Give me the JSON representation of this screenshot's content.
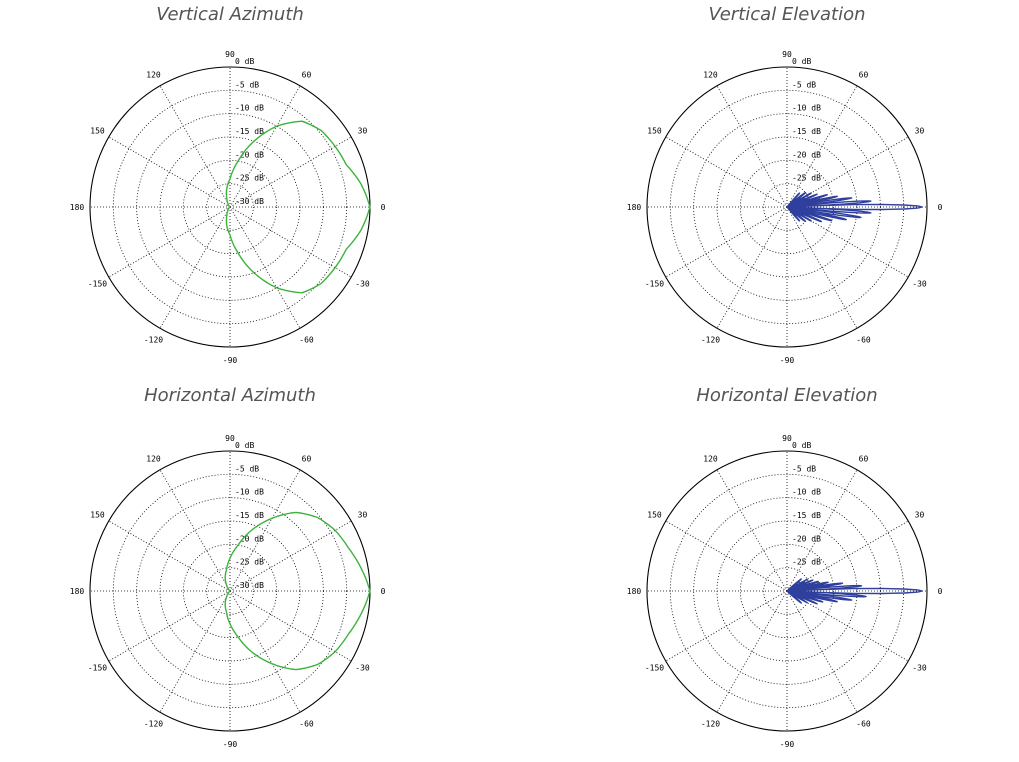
{
  "chart_data": [
    {
      "type": "polar",
      "title": "Vertical Azimuth",
      "angle_ticks": [
        "0",
        "30",
        "60",
        "90",
        "120",
        "150",
        "180",
        "-150",
        "-120",
        "-90",
        "-60",
        "-30"
      ],
      "ring_labels": [
        "0 dB",
        "-5 dB",
        "-10 dB",
        "-15 dB",
        "-20 dB",
        "-25 dB",
        "-30 dB"
      ],
      "rlim_db": [
        -30,
        0
      ],
      "grid": true,
      "series": [
        {
          "color": "#3cb33c",
          "angles_deg": [
            0,
            10,
            20,
            30,
            40,
            50,
            60,
            70,
            80,
            90,
            100,
            110,
            120,
            130,
            140,
            150,
            160,
            170,
            180,
            190,
            200,
            210,
            220,
            230,
            240,
            250,
            260,
            270,
            280,
            290,
            300,
            310,
            320,
            330,
            340,
            350
          ],
          "gain_db": [
            0,
            -1.5,
            -3.5,
            -4,
            -4.5,
            -6,
            -10,
            -15,
            -20,
            -24,
            -26,
            -28,
            -29,
            -29.5,
            -30,
            -30,
            -30,
            -30,
            -30,
            -30,
            -30,
            -30,
            -30,
            -29.5,
            -29,
            -28,
            -26,
            -24,
            -20,
            -15,
            -10,
            -6,
            -4.5,
            -4,
            -3.5,
            -1.5
          ]
        }
      ]
    },
    {
      "type": "polar",
      "title": "Vertical Elevation",
      "angle_ticks": [
        "0",
        "30",
        "60",
        "90",
        "120",
        "150",
        "180",
        "-150",
        "-120",
        "-90",
        "-60",
        "-30"
      ],
      "ring_labels": [
        "0 dB",
        "-5 dB",
        "-10 dB",
        "-15 dB",
        "-20 dB",
        "-25 dB",
        "-30 dB"
      ],
      "rlim_db": [
        -30,
        0
      ],
      "grid": true,
      "series": [
        {
          "color": "#2e3f9e",
          "lobes": [
            {
              "angle_deg": 0,
              "gain_db": -1,
              "width_deg": 3
            },
            {
              "angle_deg": 4,
              "gain_db": -12,
              "width_deg": 2
            },
            {
              "angle_deg": -4,
              "gain_db": -12,
              "width_deg": 2
            },
            {
              "angle_deg": 8,
              "gain_db": -16,
              "width_deg": 2
            },
            {
              "angle_deg": -8,
              "gain_db": -14,
              "width_deg": 2
            },
            {
              "angle_deg": 12,
              "gain_db": -19,
              "width_deg": 2
            },
            {
              "angle_deg": -12,
              "gain_db": -17,
              "width_deg": 2
            },
            {
              "angle_deg": 17,
              "gain_db": -21,
              "width_deg": 2
            },
            {
              "angle_deg": -17,
              "gain_db": -20,
              "width_deg": 2
            },
            {
              "angle_deg": 23,
              "gain_db": -23,
              "width_deg": 2
            },
            {
              "angle_deg": -23,
              "gain_db": -22,
              "width_deg": 2
            },
            {
              "angle_deg": 30,
              "gain_db": -24,
              "width_deg": 2
            },
            {
              "angle_deg": -30,
              "gain_db": -24,
              "width_deg": 2
            },
            {
              "angle_deg": 38,
              "gain_db": -25,
              "width_deg": 3
            },
            {
              "angle_deg": -38,
              "gain_db": -25,
              "width_deg": 3
            },
            {
              "angle_deg": 48,
              "gain_db": -26,
              "width_deg": 3
            },
            {
              "angle_deg": -48,
              "gain_db": -26,
              "width_deg": 3
            }
          ]
        }
      ]
    },
    {
      "type": "polar",
      "title": "Horizontal Azimuth",
      "angle_ticks": [
        "0",
        "30",
        "60",
        "90",
        "120",
        "150",
        "180",
        "-150",
        "-120",
        "-90",
        "-60",
        "-30"
      ],
      "ring_labels": [
        "0 dB",
        "-5 dB",
        "-10 dB",
        "-15 dB",
        "-20 dB",
        "-25 dB",
        "-30 dB"
      ],
      "rlim_db": [
        -30,
        0
      ],
      "grid": true,
      "series": [
        {
          "color": "#3cb33c",
          "angles_deg": [
            0,
            10,
            20,
            30,
            40,
            50,
            60,
            70,
            80,
            90,
            100,
            110,
            120,
            130,
            140,
            150,
            160,
            170,
            180,
            190,
            200,
            210,
            220,
            230,
            240,
            250,
            260,
            270,
            280,
            290,
            300,
            310,
            320,
            330,
            340,
            350
          ],
          "gain_db": [
            0,
            -1.5,
            -3,
            -4,
            -5.5,
            -8,
            -12,
            -16,
            -20,
            -23,
            -25.5,
            -27,
            -28.5,
            -29.5,
            -30,
            -30,
            -30,
            -30,
            -30,
            -30,
            -30,
            -30,
            -30,
            -29.5,
            -28.5,
            -27,
            -25.5,
            -23,
            -20,
            -16,
            -12,
            -8,
            -5.5,
            -4,
            -3,
            -1.5
          ]
        }
      ]
    },
    {
      "type": "polar",
      "title": "Horizontal Elevation",
      "angle_ticks": [
        "0",
        "30",
        "60",
        "90",
        "120",
        "150",
        "180",
        "-150",
        "-120",
        "-90",
        "-60",
        "-30"
      ],
      "ring_labels": [
        "0 dB",
        "-5 dB",
        "-10 dB",
        "-15 dB",
        "-20 dB",
        "-25 dB",
        "-30 dB"
      ],
      "rlim_db": [
        -30,
        0
      ],
      "grid": true,
      "series": [
        {
          "color": "#2e3f9e",
          "lobes": [
            {
              "angle_deg": 0,
              "gain_db": -1,
              "width_deg": 3
            },
            {
              "angle_deg": 4,
              "gain_db": -14,
              "width_deg": 2
            },
            {
              "angle_deg": -4,
              "gain_db": -13,
              "width_deg": 2
            },
            {
              "angle_deg": 8,
              "gain_db": -18,
              "width_deg": 2
            },
            {
              "angle_deg": -8,
              "gain_db": -16,
              "width_deg": 2
            },
            {
              "angle_deg": 12,
              "gain_db": -21,
              "width_deg": 2
            },
            {
              "angle_deg": -12,
              "gain_db": -19,
              "width_deg": 2
            },
            {
              "angle_deg": 17,
              "gain_db": -23,
              "width_deg": 2
            },
            {
              "angle_deg": -17,
              "gain_db": -22,
              "width_deg": 2
            },
            {
              "angle_deg": 23,
              "gain_db": -24,
              "width_deg": 2
            },
            {
              "angle_deg": -23,
              "gain_db": -23,
              "width_deg": 2
            },
            {
              "angle_deg": 30,
              "gain_db": -25,
              "width_deg": 2
            },
            {
              "angle_deg": -30,
              "gain_db": -25,
              "width_deg": 2
            },
            {
              "angle_deg": 40,
              "gain_db": -26,
              "width_deg": 3
            },
            {
              "angle_deg": -40,
              "gain_db": -26,
              "width_deg": 3
            }
          ]
        }
      ]
    }
  ]
}
